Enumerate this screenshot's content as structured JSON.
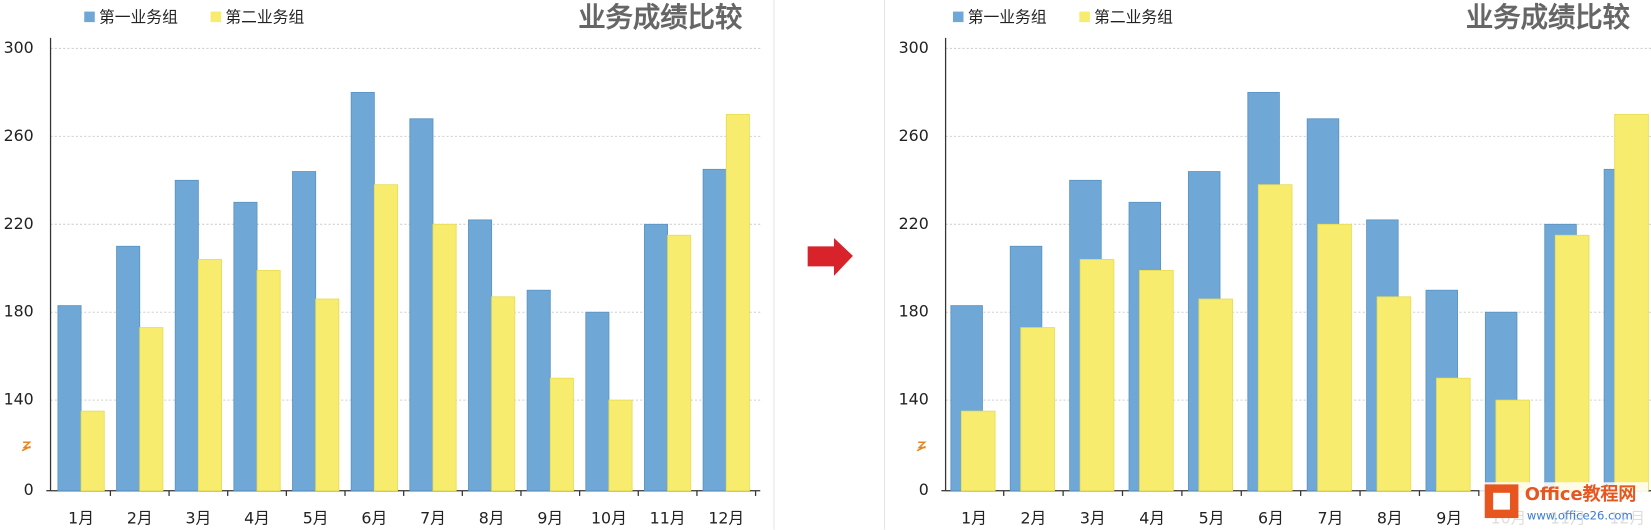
{
  "chart_data": [
    {
      "type": "bar",
      "title": "业务成绩比较",
      "overlap": false,
      "categories": [
        "1月",
        "2月",
        "3月",
        "4月",
        "5月",
        "6月",
        "7月",
        "8月",
        "9月",
        "10月",
        "11月",
        "12月"
      ],
      "series": [
        {
          "name": "第一业务组",
          "color": "#6fa8d6",
          "values": [
            183,
            210,
            240,
            230,
            244,
            280,
            268,
            222,
            190,
            180,
            220,
            245
          ]
        },
        {
          "name": "第二业务组",
          "color": "#f7ec6e",
          "values": [
            135,
            173,
            204,
            199,
            186,
            238,
            220,
            187,
            150,
            140,
            215,
            270
          ]
        }
      ],
      "ylim": [
        0,
        300
      ],
      "yticks": [
        0,
        140,
        180,
        220,
        260,
        300
      ],
      "grid": true
    },
    {
      "type": "bar",
      "title": "业务成绩比较",
      "overlap": true,
      "categories": [
        "1月",
        "2月",
        "3月",
        "4月",
        "5月",
        "6月",
        "7月",
        "8月",
        "9月",
        "10月",
        "11月",
        "12月"
      ],
      "series": [
        {
          "name": "第一业务组",
          "color": "#6fa8d6",
          "values": [
            183,
            210,
            240,
            230,
            244,
            280,
            268,
            222,
            190,
            180,
            220,
            245
          ]
        },
        {
          "name": "第二业务组",
          "color": "#f7ec6e",
          "values": [
            135,
            173,
            204,
            199,
            186,
            238,
            220,
            187,
            150,
            140,
            215,
            270
          ]
        }
      ],
      "ylim": [
        0,
        300
      ],
      "yticks": [
        0,
        140,
        180,
        220,
        260,
        300
      ],
      "grid": true
    }
  ],
  "watermark": {
    "name": "Office教程网",
    "url": "www.office26.com"
  }
}
